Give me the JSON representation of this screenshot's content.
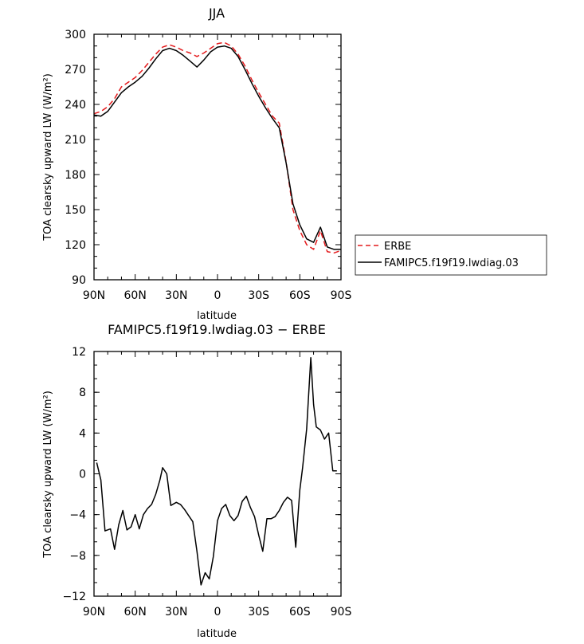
{
  "chart_data": [
    {
      "type": "line",
      "title": "JJA",
      "xlabel": "latitude",
      "ylabel": "TOA clearsky upward LW (W/m²)",
      "xticks": [
        "90N",
        "60N",
        "30N",
        "0",
        "30S",
        "60S",
        "90S"
      ],
      "yticks": [
        "90",
        "120",
        "150",
        "180",
        "210",
        "240",
        "270",
        "300"
      ],
      "xlim": [
        90,
        -90
      ],
      "ylim": [
        90,
        300
      ],
      "x": [
        90,
        85,
        80,
        75,
        70,
        65,
        60,
        55,
        50,
        45,
        40,
        35,
        30,
        25,
        20,
        15,
        10,
        5,
        0,
        -5,
        -10,
        -15,
        -20,
        -25,
        -30,
        -35,
        -40,
        -45,
        -50,
        -55,
        -60,
        -65,
        -70,
        -75,
        -80,
        -85,
        -90
      ],
      "series": [
        {
          "name": "ERBE",
          "color": "#e41a1c",
          "dash": "dashed",
          "values": [
            232,
            234,
            238,
            245,
            255,
            259,
            263,
            269,
            276,
            283,
            289,
            291,
            289,
            286,
            284,
            281,
            284,
            288,
            292,
            293,
            290,
            283,
            273,
            261,
            250,
            240,
            230,
            224,
            191,
            150,
            132,
            120,
            116,
            132,
            114,
            113,
            115
          ]
        },
        {
          "name": "FAMIPC5.f19f19.lwdiag.03",
          "color": "#000000",
          "dash": "solid",
          "values": [
            231,
            230,
            234,
            242,
            250,
            255,
            259,
            264,
            271,
            279,
            286,
            288,
            286,
            282,
            277,
            272,
            278,
            285,
            289,
            290,
            288,
            281,
            270,
            258,
            247,
            237,
            228,
            220,
            190,
            155,
            137,
            125,
            122,
            135,
            118,
            116,
            116
          ]
        }
      ],
      "legend_position": "right"
    },
    {
      "type": "line",
      "title": "FAMIPC5.f19f19.lwdiag.03 − ERBE",
      "xlabel": "latitude",
      "ylabel": "TOA clearsky upward LW (W/m²)",
      "xticks": [
        "90N",
        "60N",
        "30N",
        "0",
        "30S",
        "60S",
        "90S"
      ],
      "yticks": [
        "−12",
        "−8",
        "−4",
        "0",
        "4",
        "8",
        "12"
      ],
      "xlim": [
        90,
        -90
      ],
      "ylim": [
        -12,
        12
      ],
      "series": [
        {
          "name": "",
          "color": "#000000",
          "x": [
            88,
            85,
            82,
            78,
            75,
            72,
            69,
            66,
            63,
            60,
            57,
            54,
            51,
            48,
            45,
            42,
            40,
            37,
            34,
            30,
            27,
            24,
            21,
            18,
            15,
            12,
            9,
            6,
            3,
            0,
            -3,
            -6,
            -9,
            -12,
            -15,
            -18,
            -21,
            -24,
            -27,
            -30,
            -33,
            -36,
            -39,
            -42,
            -45,
            -48,
            -51,
            -54,
            -57,
            -60,
            -62,
            -65,
            -68,
            -70,
            -72,
            -75,
            -78,
            -81,
            -84,
            -87
          ],
          "values": [
            1.1,
            -0.6,
            -5.6,
            -5.4,
            -7.4,
            -5.0,
            -3.6,
            -5.5,
            -5.2,
            -4.0,
            -5.4,
            -4.0,
            -3.4,
            -3.0,
            -2.0,
            -0.6,
            0.6,
            0.0,
            -3.1,
            -2.8,
            -3.0,
            -3.5,
            -4.1,
            -4.7,
            -7.6,
            -10.9,
            -9.7,
            -10.3,
            -8.1,
            -4.6,
            -3.4,
            -3.0,
            -4.1,
            -4.6,
            -4.1,
            -2.7,
            -2.2,
            -3.3,
            -4.2,
            -6.0,
            -7.6,
            -4.4,
            -4.4,
            -4.2,
            -3.6,
            -2.8,
            -2.3,
            -2.6,
            -7.2,
            -1.6,
            0.6,
            4.4,
            11.4,
            6.8,
            4.6,
            4.3,
            3.4,
            4.0,
            0.3,
            0.3
          ]
        }
      ]
    }
  ]
}
